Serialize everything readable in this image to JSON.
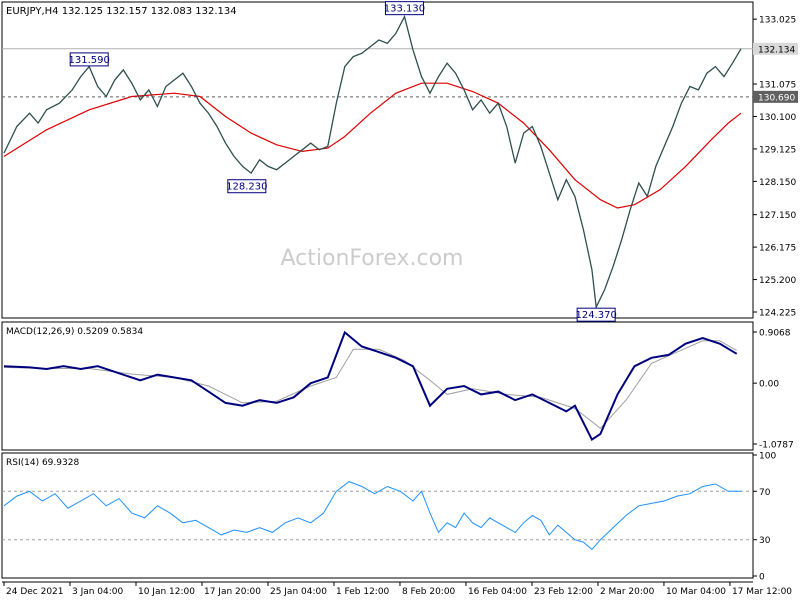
{
  "chart_data": {
    "type": "line",
    "colors": {
      "background": "#ffffff",
      "frame": "#000000",
      "price_line": "#2f4f4f",
      "moving_average": "#e00000",
      "macd_line": "#00007f",
      "macd_signal": "#a0a0a0",
      "rsi_line": "#1e90ff",
      "level_line": "#606060",
      "label_box": "#000080",
      "watermark": "#cccccc"
    },
    "header": {
      "symbol": "EURJPY,H4",
      "ohlc": "132.125 132.157 132.083 132.134"
    },
    "watermark": "ActionForex.com",
    "x_labels": [
      "24 Dec 2021",
      "3 Jan 04:00",
      "10 Jan 12:00",
      "17 Jan 20:00",
      "25 Jan 04:00",
      "1 Feb 12:00",
      "8 Feb 20:00",
      "16 Feb 04:00",
      "23 Feb 12:00",
      "2 Mar 20:00",
      "10 Mar 04:00",
      "17 Mar 12:00"
    ],
    "price_panel": {
      "y_ticks": [
        "133.025",
        "131.075",
        "130.100",
        "129.125",
        "128.150",
        "127.150",
        "126.175",
        "125.200",
        "124.225"
      ],
      "ylim": [
        124.225,
        133.3
      ],
      "current_price_label": "132.134",
      "current_price": 132.134,
      "level_label": "130.690",
      "level": 130.69,
      "upper_line": 132.134,
      "price_series": [
        [
          0,
          129.0
        ],
        [
          3,
          129.8
        ],
        [
          6,
          130.2
        ],
        [
          8,
          129.9
        ],
        [
          10,
          130.3
        ],
        [
          13,
          130.5
        ],
        [
          16,
          130.9
        ],
        [
          18,
          131.3
        ],
        [
          20,
          131.6
        ],
        [
          22,
          131.0
        ],
        [
          24,
          130.7
        ],
        [
          26,
          131.2
        ],
        [
          28,
          131.5
        ],
        [
          30,
          131.1
        ],
        [
          32,
          130.6
        ],
        [
          34,
          130.9
        ],
        [
          36,
          130.4
        ],
        [
          38,
          131.0
        ],
        [
          40,
          131.2
        ],
        [
          42,
          131.4
        ],
        [
          44,
          131.0
        ],
        [
          46,
          130.5
        ],
        [
          48,
          130.2
        ],
        [
          50,
          129.8
        ],
        [
          52,
          129.3
        ],
        [
          54,
          128.9
        ],
        [
          56,
          128.6
        ],
        [
          58,
          128.4
        ],
        [
          60,
          128.8
        ],
        [
          62,
          128.6
        ],
        [
          64,
          128.5
        ],
        [
          66,
          128.7
        ],
        [
          68,
          128.9
        ],
        [
          70,
          129.1
        ],
        [
          72,
          129.3
        ],
        [
          74,
          129.1
        ],
        [
          76,
          129.2
        ],
        [
          78,
          130.5
        ],
        [
          80,
          131.6
        ],
        [
          82,
          131.9
        ],
        [
          84,
          132.0
        ],
        [
          86,
          132.2
        ],
        [
          88,
          132.4
        ],
        [
          90,
          132.3
        ],
        [
          92,
          132.6
        ],
        [
          94,
          133.1
        ],
        [
          96,
          132.1
        ],
        [
          98,
          131.3
        ],
        [
          100,
          130.8
        ],
        [
          102,
          131.3
        ],
        [
          104,
          131.7
        ],
        [
          106,
          131.4
        ],
        [
          108,
          130.9
        ],
        [
          110,
          130.3
        ],
        [
          112,
          130.6
        ],
        [
          114,
          130.2
        ],
        [
          116,
          130.5
        ],
        [
          118,
          129.8
        ],
        [
          120,
          128.7
        ],
        [
          122,
          129.6
        ],
        [
          124,
          129.8
        ],
        [
          126,
          129.2
        ],
        [
          128,
          128.4
        ],
        [
          130,
          127.6
        ],
        [
          132,
          128.2
        ],
        [
          134,
          127.7
        ],
        [
          136,
          126.7
        ],
        [
          138,
          125.5
        ],
        [
          139,
          124.37
        ],
        [
          141,
          124.9
        ],
        [
          143,
          125.6
        ],
        [
          145,
          126.4
        ],
        [
          147,
          127.3
        ],
        [
          149,
          128.1
        ],
        [
          151,
          127.7
        ],
        [
          153,
          128.6
        ],
        [
          155,
          129.2
        ],
        [
          157,
          129.8
        ],
        [
          159,
          130.5
        ],
        [
          161,
          131.0
        ],
        [
          163,
          130.9
        ],
        [
          165,
          131.4
        ],
        [
          167,
          131.6
        ],
        [
          169,
          131.3
        ],
        [
          171,
          131.7
        ],
        [
          173,
          132.134
        ]
      ],
      "ma_series": [
        [
          0,
          128.9
        ],
        [
          10,
          129.7
        ],
        [
          20,
          130.3
        ],
        [
          30,
          130.7
        ],
        [
          40,
          130.8
        ],
        [
          46,
          130.7
        ],
        [
          52,
          130.1
        ],
        [
          58,
          129.6
        ],
        [
          64,
          129.25
        ],
        [
          70,
          129.05
        ],
        [
          76,
          129.15
        ],
        [
          80,
          129.5
        ],
        [
          86,
          130.2
        ],
        [
          92,
          130.8
        ],
        [
          98,
          131.1
        ],
        [
          104,
          131.1
        ],
        [
          110,
          130.85
        ],
        [
          116,
          130.5
        ],
        [
          122,
          129.9
        ],
        [
          128,
          129.1
        ],
        [
          134,
          128.2
        ],
        [
          140,
          127.6
        ],
        [
          144,
          127.35
        ],
        [
          148,
          127.45
        ],
        [
          154,
          127.9
        ],
        [
          160,
          128.6
        ],
        [
          166,
          129.4
        ],
        [
          170,
          129.9
        ],
        [
          173,
          130.2
        ]
      ],
      "labels": [
        {
          "text": "131.590",
          "idx": 20,
          "value": 131.59,
          "position": "above"
        },
        {
          "text": "133.130",
          "idx": 94,
          "value": 133.13,
          "position": "above"
        },
        {
          "text": "128.230",
          "idx": 57,
          "value": 128.23,
          "position": "below"
        },
        {
          "text": "124.370",
          "idx": 139,
          "value": 124.37,
          "position": "below"
        }
      ]
    },
    "macd_panel": {
      "title": "MACD(12,26,9) 0.5209 0.5834",
      "y_ticks": [
        "0.9068",
        "0.00",
        "-1.0787"
      ],
      "ylim": [
        -1.0787,
        0.9068
      ],
      "macd": [
        [
          0,
          0.3
        ],
        [
          6,
          0.28
        ],
        [
          10,
          0.25
        ],
        [
          14,
          0.3
        ],
        [
          18,
          0.25
        ],
        [
          22,
          0.3
        ],
        [
          28,
          0.15
        ],
        [
          32,
          0.05
        ],
        [
          36,
          0.15
        ],
        [
          40,
          0.1
        ],
        [
          44,
          0.05
        ],
        [
          48,
          -0.15
        ],
        [
          52,
          -0.35
        ],
        [
          56,
          -0.4
        ],
        [
          60,
          -0.3
        ],
        [
          64,
          -0.35
        ],
        [
          68,
          -0.25
        ],
        [
          72,
          0.0
        ],
        [
          76,
          0.1
        ],
        [
          80,
          0.9
        ],
        [
          84,
          0.65
        ],
        [
          88,
          0.55
        ],
        [
          92,
          0.45
        ],
        [
          96,
          0.3
        ],
        [
          100,
          -0.4
        ],
        [
          104,
          -0.1
        ],
        [
          108,
          -0.05
        ],
        [
          112,
          -0.2
        ],
        [
          116,
          -0.15
        ],
        [
          120,
          -0.3
        ],
        [
          124,
          -0.2
        ],
        [
          128,
          -0.35
        ],
        [
          132,
          -0.5
        ],
        [
          134,
          -0.4
        ],
        [
          138,
          -1.0
        ],
        [
          140,
          -0.9
        ],
        [
          144,
          -0.2
        ],
        [
          148,
          0.3
        ],
        [
          152,
          0.45
        ],
        [
          156,
          0.5
        ],
        [
          160,
          0.7
        ],
        [
          164,
          0.8
        ],
        [
          168,
          0.7
        ],
        [
          172,
          0.52
        ]
      ],
      "signal": [
        [
          0,
          0.28
        ],
        [
          10,
          0.26
        ],
        [
          20,
          0.26
        ],
        [
          30,
          0.16
        ],
        [
          40,
          0.1
        ],
        [
          48,
          -0.05
        ],
        [
          56,
          -0.35
        ],
        [
          64,
          -0.32
        ],
        [
          72,
          -0.05
        ],
        [
          78,
          0.1
        ],
        [
          82,
          0.6
        ],
        [
          88,
          0.6
        ],
        [
          94,
          0.4
        ],
        [
          100,
          0.05
        ],
        [
          104,
          -0.2
        ],
        [
          110,
          -0.1
        ],
        [
          118,
          -0.2
        ],
        [
          126,
          -0.25
        ],
        [
          134,
          -0.45
        ],
        [
          140,
          -0.8
        ],
        [
          146,
          -0.3
        ],
        [
          152,
          0.35
        ],
        [
          158,
          0.55
        ],
        [
          164,
          0.75
        ],
        [
          168,
          0.75
        ],
        [
          172,
          0.58
        ]
      ]
    },
    "rsi_panel": {
      "title": "RSI(14) 69.9328",
      "y_ticks": [
        "100",
        "70",
        "30",
        "0"
      ],
      "ylim": [
        0,
        100
      ],
      "levels": [
        70,
        30
      ],
      "rsi": [
        [
          0,
          58
        ],
        [
          3,
          66
        ],
        [
          6,
          70
        ],
        [
          9,
          62
        ],
        [
          12,
          68
        ],
        [
          15,
          56
        ],
        [
          18,
          62
        ],
        [
          21,
          68
        ],
        [
          24,
          58
        ],
        [
          27,
          64
        ],
        [
          30,
          52
        ],
        [
          33,
          48
        ],
        [
          36,
          58
        ],
        [
          39,
          52
        ],
        [
          42,
          44
        ],
        [
          45,
          46
        ],
        [
          48,
          40
        ],
        [
          51,
          34
        ],
        [
          54,
          38
        ],
        [
          57,
          36
        ],
        [
          60,
          40
        ],
        [
          63,
          36
        ],
        [
          66,
          44
        ],
        [
          69,
          48
        ],
        [
          72,
          44
        ],
        [
          75,
          52
        ],
        [
          78,
          70
        ],
        [
          81,
          78
        ],
        [
          84,
          74
        ],
        [
          87,
          68
        ],
        [
          90,
          74
        ],
        [
          93,
          70
        ],
        [
          96,
          62
        ],
        [
          98,
          70
        ],
        [
          100,
          52
        ],
        [
          102,
          36
        ],
        [
          104,
          44
        ],
        [
          106,
          40
        ],
        [
          108,
          52
        ],
        [
          110,
          44
        ],
        [
          112,
          40
        ],
        [
          114,
          48
        ],
        [
          116,
          44
        ],
        [
          118,
          40
        ],
        [
          120,
          36
        ],
        [
          122,
          44
        ],
        [
          124,
          50
        ],
        [
          126,
          46
        ],
        [
          128,
          34
        ],
        [
          130,
          42
        ],
        [
          132,
          36
        ],
        [
          134,
          30
        ],
        [
          136,
          28
        ],
        [
          138,
          22
        ],
        [
          140,
          30
        ],
        [
          143,
          40
        ],
        [
          146,
          50
        ],
        [
          149,
          58
        ],
        [
          152,
          60
        ],
        [
          155,
          62
        ],
        [
          158,
          66
        ],
        [
          161,
          68
        ],
        [
          164,
          74
        ],
        [
          167,
          76
        ],
        [
          170,
          70
        ],
        [
          173,
          70
        ]
      ]
    }
  }
}
